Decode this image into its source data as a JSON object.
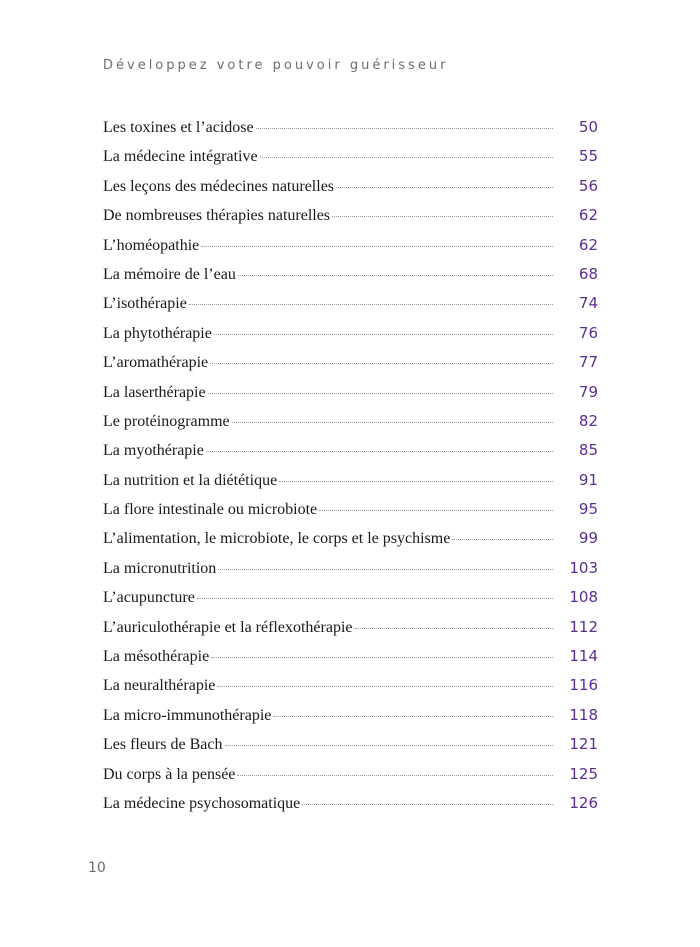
{
  "header": {
    "title": "Développez votre pouvoir guérisseur"
  },
  "toc": {
    "entries": [
      {
        "title": "Les toxines et l’acidose",
        "page": 50
      },
      {
        "title": "La médecine intégrative",
        "page": 55
      },
      {
        "title": "Les leçons des médecines naturelles",
        "page": 56
      },
      {
        "title": "De nombreuses thérapies naturelles",
        "page": 62
      },
      {
        "title": "L’homéopathie",
        "page": 62
      },
      {
        "title": "La mémoire de l’eau",
        "page": 68
      },
      {
        "title": "L’isothérapie",
        "page": 74
      },
      {
        "title": "La phytothérapie",
        "page": 76
      },
      {
        "title": "L’aromathérapie",
        "page": 77
      },
      {
        "title": "La laserthérapie",
        "page": 79
      },
      {
        "title": "Le protéinogramme",
        "page": 82
      },
      {
        "title": "La myothérapie",
        "page": 85
      },
      {
        "title": "La nutrition et la diététique",
        "page": 91
      },
      {
        "title": "La flore intestinale ou microbiote",
        "page": 95
      },
      {
        "title": "L’alimentation, le microbiote, le corps et le psychisme",
        "page": 99
      },
      {
        "title": "La micronutrition",
        "page": 103
      },
      {
        "title": "L’acupuncture",
        "page": 108
      },
      {
        "title": "L’auriculothérapie et la réflexothérapie",
        "page": 112
      },
      {
        "title": "La mésothérapie",
        "page": 114
      },
      {
        "title": "La neuralthérapie",
        "page": 116
      },
      {
        "title": "La micro-immunothérapie",
        "page": 118
      },
      {
        "title": "Les fleurs de Bach",
        "page": 121
      },
      {
        "title": "Du corps à la pensée",
        "page": 125
      },
      {
        "title": "La médecine psychosomatique",
        "page": 126
      }
    ]
  },
  "footer": {
    "page_number": 10
  }
}
